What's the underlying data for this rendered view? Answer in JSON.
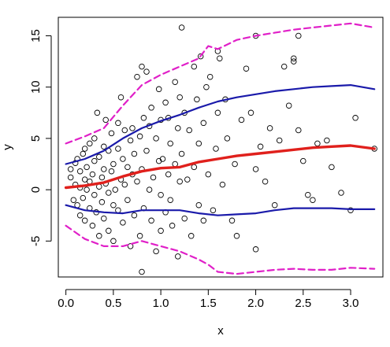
{
  "chart_data": {
    "type": "scatter",
    "title": "",
    "xlabel": "x",
    "ylabel": "y",
    "xlim": [
      -0.08,
      3.34
    ],
    "ylim": [
      -8.5,
      16.8
    ],
    "xticks": [
      0.0,
      0.5,
      1.0,
      1.5,
      2.0,
      2.5,
      3.0
    ],
    "xtick_labels": [
      "0.0",
      "0.5",
      "1.0",
      "1.5",
      "2.0",
      "2.5",
      "3.0"
    ],
    "yticks": [
      -5,
      0,
      5,
      10,
      15
    ],
    "ytick_labels": [
      "-5",
      "0",
      "5",
      "10",
      "15"
    ],
    "grid": false,
    "legend": "none",
    "colors": {
      "points": "#000000",
      "center_line": "#e0201c",
      "inner_band": "#1a1aaa",
      "outer_band": "#e020c8"
    },
    "series": [
      {
        "role": "scatter points",
        "points": [
          [
            0.05,
            1.2
          ],
          [
            0.05,
            2.0
          ],
          [
            0.08,
            -1.0
          ],
          [
            0.1,
            0.5
          ],
          [
            0.1,
            2.6
          ],
          [
            0.12,
            -1.5
          ],
          [
            0.12,
            3.0
          ],
          [
            0.15,
            0.2
          ],
          [
            0.15,
            -2.5
          ],
          [
            0.15,
            1.8
          ],
          [
            0.18,
            3.5
          ],
          [
            0.18,
            -0.8
          ],
          [
            0.2,
            4.0
          ],
          [
            0.2,
            1.0
          ],
          [
            0.2,
            -3.0
          ],
          [
            0.22,
            0.0
          ],
          [
            0.22,
            2.2
          ],
          [
            0.25,
            -1.8
          ],
          [
            0.25,
            4.5
          ],
          [
            0.25,
            0.8
          ],
          [
            0.28,
            -3.5
          ],
          [
            0.28,
            1.5
          ],
          [
            0.3,
            5.0
          ],
          [
            0.3,
            -0.5
          ],
          [
            0.3,
            2.8
          ],
          [
            0.32,
            -2.2
          ],
          [
            0.33,
            7.5
          ],
          [
            0.35,
            0.3
          ],
          [
            0.35,
            3.2
          ],
          [
            0.35,
            -4.5
          ],
          [
            0.38,
            1.2
          ],
          [
            0.38,
            -1.2
          ],
          [
            0.4,
            4.2
          ],
          [
            0.4,
            2.0
          ],
          [
            0.4,
            -2.8
          ],
          [
            0.42,
            6.8
          ],
          [
            0.42,
            0.6
          ],
          [
            0.45,
            -0.3
          ],
          [
            0.45,
            3.8
          ],
          [
            0.45,
            -4.0
          ],
          [
            0.48,
            1.8
          ],
          [
            0.48,
            5.5
          ],
          [
            0.5,
            -1.5
          ],
          [
            0.5,
            2.5
          ],
          [
            0.5,
            -5.0
          ],
          [
            0.52,
            0.0
          ],
          [
            0.55,
            4.0
          ],
          [
            0.55,
            -2.0
          ],
          [
            0.55,
            6.5
          ],
          [
            0.58,
            1.0
          ],
          [
            0.58,
            9.0
          ],
          [
            0.6,
            -3.2
          ],
          [
            0.6,
            3.0
          ],
          [
            0.62,
            0.5
          ],
          [
            0.62,
            5.8
          ],
          [
            0.65,
            -1.0
          ],
          [
            0.65,
            2.2
          ],
          [
            0.68,
            4.8
          ],
          [
            0.68,
            -5.5
          ],
          [
            0.7,
            1.5
          ],
          [
            0.7,
            6.0
          ],
          [
            0.72,
            -2.5
          ],
          [
            0.72,
            3.5
          ],
          [
            0.75,
            0.8
          ],
          [
            0.75,
            11.0
          ],
          [
            0.78,
            -4.5
          ],
          [
            0.78,
            5.2
          ],
          [
            0.8,
            2.0
          ],
          [
            0.8,
            12.0
          ],
          [
            0.8,
            -8.0
          ],
          [
            0.82,
            7.0
          ],
          [
            0.82,
            -1.8
          ],
          [
            0.85,
            11.5
          ],
          [
            0.85,
            3.8
          ],
          [
            0.88,
            0.0
          ],
          [
            0.88,
            6.2
          ],
          [
            0.9,
            -3.0
          ],
          [
            0.9,
            8.0
          ],
          [
            0.92,
            1.2
          ],
          [
            0.95,
            5.0
          ],
          [
            0.95,
            -6.0
          ],
          [
            0.98,
            9.8
          ],
          [
            0.98,
            2.8
          ],
          [
            1.0,
            -0.5
          ],
          [
            1.0,
            6.8
          ],
          [
            1.0,
            -4.0
          ],
          [
            1.02,
            3.0
          ],
          [
            1.05,
            8.5
          ],
          [
            1.05,
            -2.2
          ],
          [
            1.08,
            1.5
          ],
          [
            1.08,
            7.0
          ],
          [
            1.1,
            -1.0
          ],
          [
            1.1,
            4.5
          ],
          [
            1.12,
            -3.5
          ],
          [
            1.15,
            2.5
          ],
          [
            1.15,
            10.5
          ],
          [
            1.18,
            6.0
          ],
          [
            1.18,
            -6.5
          ],
          [
            1.2,
            0.8
          ],
          [
            1.2,
            9.0
          ],
          [
            1.22,
            15.8
          ],
          [
            1.22,
            3.5
          ],
          [
            1.25,
            -2.8
          ],
          [
            1.25,
            7.5
          ],
          [
            1.28,
            1.0
          ],
          [
            1.3,
            5.8
          ],
          [
            1.32,
            -4.5
          ],
          [
            1.35,
            12.0
          ],
          [
            1.35,
            2.2
          ],
          [
            1.38,
            8.8
          ],
          [
            1.4,
            -1.5
          ],
          [
            1.4,
            4.5
          ],
          [
            1.42,
            13.0
          ],
          [
            1.45,
            -3.0
          ],
          [
            1.45,
            6.5
          ],
          [
            1.48,
            10.0
          ],
          [
            1.5,
            1.5
          ],
          [
            1.52,
            11.0
          ],
          [
            1.55,
            -2.0
          ],
          [
            1.58,
            4.0
          ],
          [
            1.6,
            13.5
          ],
          [
            1.6,
            7.5
          ],
          [
            1.62,
            12.8
          ],
          [
            1.65,
            0.5
          ],
          [
            1.68,
            8.8
          ],
          [
            1.7,
            5.0
          ],
          [
            1.75,
            -3.0
          ],
          [
            1.78,
            2.5
          ],
          [
            1.8,
            -4.5
          ],
          [
            1.85,
            6.8
          ],
          [
            1.9,
            11.8
          ],
          [
            1.95,
            7.5
          ],
          [
            2.0,
            15.0
          ],
          [
            2.0,
            2.0
          ],
          [
            2.0,
            -5.8
          ],
          [
            2.05,
            4.2
          ],
          [
            2.1,
            0.8
          ],
          [
            2.15,
            6.0
          ],
          [
            2.2,
            -1.5
          ],
          [
            2.25,
            4.8
          ],
          [
            2.3,
            12.0
          ],
          [
            2.35,
            8.2
          ],
          [
            2.4,
            12.5
          ],
          [
            2.4,
            12.8
          ],
          [
            2.45,
            15.0
          ],
          [
            2.45,
            5.8
          ],
          [
            2.5,
            2.8
          ],
          [
            2.55,
            -0.5
          ],
          [
            2.6,
            -1.0
          ],
          [
            2.65,
            4.5
          ],
          [
            2.75,
            4.8
          ],
          [
            2.8,
            2.2
          ],
          [
            2.9,
            -0.3
          ],
          [
            3.0,
            -2.0
          ],
          [
            3.05,
            7.0
          ],
          [
            3.25,
            4.0
          ]
        ]
      },
      {
        "role": "center line",
        "points": [
          [
            0.0,
            0.2
          ],
          [
            0.2,
            0.4
          ],
          [
            0.4,
            0.7
          ],
          [
            0.6,
            1.3
          ],
          [
            0.8,
            1.8
          ],
          [
            1.0,
            2.1
          ],
          [
            1.2,
            2.2
          ],
          [
            1.4,
            2.7
          ],
          [
            1.6,
            3.0
          ],
          [
            1.8,
            3.3
          ],
          [
            2.0,
            3.5
          ],
          [
            2.2,
            3.7
          ],
          [
            2.4,
            3.9
          ],
          [
            2.6,
            4.1
          ],
          [
            2.8,
            4.2
          ],
          [
            3.0,
            4.3
          ],
          [
            3.25,
            4.0
          ]
        ]
      },
      {
        "role": "inner upper band",
        "points": [
          [
            0.0,
            2.5
          ],
          [
            0.2,
            3.0
          ],
          [
            0.4,
            3.8
          ],
          [
            0.6,
            5.0
          ],
          [
            0.8,
            6.0
          ],
          [
            1.0,
            6.7
          ],
          [
            1.2,
            7.3
          ],
          [
            1.4,
            8.0
          ],
          [
            1.6,
            8.6
          ],
          [
            1.8,
            9.0
          ],
          [
            2.0,
            9.3
          ],
          [
            2.2,
            9.6
          ],
          [
            2.4,
            9.8
          ],
          [
            2.6,
            10.0
          ],
          [
            2.8,
            10.1
          ],
          [
            3.0,
            10.2
          ],
          [
            3.25,
            9.8
          ]
        ]
      },
      {
        "role": "inner lower band",
        "points": [
          [
            0.0,
            -1.5
          ],
          [
            0.2,
            -2.0
          ],
          [
            0.4,
            -2.2
          ],
          [
            0.6,
            -2.3
          ],
          [
            0.8,
            -2.0
          ],
          [
            1.0,
            -2.0
          ],
          [
            1.2,
            -2.0
          ],
          [
            1.4,
            -2.3
          ],
          [
            1.6,
            -2.5
          ],
          [
            1.8,
            -2.4
          ],
          [
            2.0,
            -2.3
          ],
          [
            2.2,
            -2.0
          ],
          [
            2.4,
            -1.8
          ],
          [
            2.6,
            -1.8
          ],
          [
            2.8,
            -1.8
          ],
          [
            3.0,
            -1.9
          ],
          [
            3.25,
            -1.9
          ]
        ]
      },
      {
        "role": "outer upper band",
        "points": [
          [
            0.0,
            4.5
          ],
          [
            0.2,
            5.2
          ],
          [
            0.4,
            6.0
          ],
          [
            0.6,
            8.2
          ],
          [
            0.8,
            10.2
          ],
          [
            1.0,
            11.2
          ],
          [
            1.2,
            12.0
          ],
          [
            1.4,
            12.8
          ],
          [
            1.5,
            14.0
          ],
          [
            1.6,
            13.7
          ],
          [
            1.8,
            14.6
          ],
          [
            2.0,
            15.0
          ],
          [
            2.2,
            15.3
          ],
          [
            2.4,
            15.6
          ],
          [
            2.6,
            15.8
          ],
          [
            2.8,
            16.0
          ],
          [
            3.0,
            16.2
          ],
          [
            3.25,
            15.8
          ]
        ]
      },
      {
        "role": "outer lower band",
        "points": [
          [
            0.0,
            -3.5
          ],
          [
            0.2,
            -4.8
          ],
          [
            0.4,
            -5.5
          ],
          [
            0.6,
            -5.5
          ],
          [
            0.8,
            -5.0
          ],
          [
            1.0,
            -5.5
          ],
          [
            1.2,
            -6.0
          ],
          [
            1.4,
            -6.8
          ],
          [
            1.5,
            -7.3
          ],
          [
            1.6,
            -8.0
          ],
          [
            1.8,
            -8.2
          ],
          [
            2.0,
            -8.0
          ],
          [
            2.2,
            -7.8
          ],
          [
            2.4,
            -7.7
          ],
          [
            2.6,
            -7.8
          ],
          [
            2.8,
            -7.8
          ],
          [
            3.0,
            -7.6
          ],
          [
            3.25,
            -7.7
          ]
        ]
      }
    ]
  }
}
